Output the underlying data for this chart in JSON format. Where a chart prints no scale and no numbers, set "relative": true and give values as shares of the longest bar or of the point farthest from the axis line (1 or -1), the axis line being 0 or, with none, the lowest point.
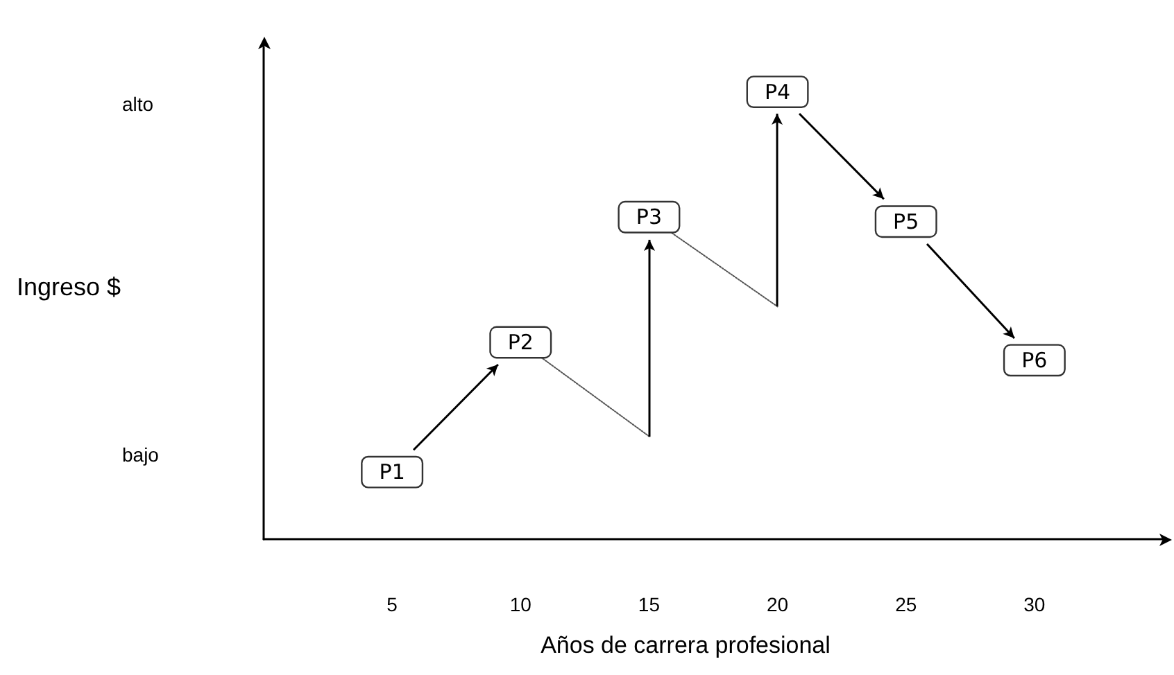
{
  "chart_data": {
    "type": "line",
    "relative": true,
    "xlabel": "Años de carrera profesional",
    "xlim": [
      0,
      35
    ],
    "xticks": [
      5,
      10,
      15,
      20,
      25,
      30
    ],
    "grid": false,
    "annotations": [
      "alto",
      "bajo",
      "Ingreso $",
      {
        "text": "P1",
        "x": 5,
        "y": 0.15
      },
      {
        "text": "P2",
        "x": 10,
        "y": 0.44
      },
      {
        "text": "P3",
        "x": 15,
        "y": 0.72
      },
      {
        "text": "P4",
        "x": 20,
        "y": 1
      },
      {
        "text": "P5",
        "x": 25,
        "y": 0.71
      },
      {
        "text": "P6",
        "x": 30,
        "y": 0.4
      }
    ],
    "series": [
      {
        "type": "scatter",
        "color": "#333333",
        "x": [
          5,
          10,
          15,
          20,
          25,
          30
        ],
        "values": [
          0.15,
          0.44,
          0.72,
          1,
          0.71,
          0.4
        ]
      },
      {
        "color": "#555555",
        "line_style": "dotted",
        "x": [
          10,
          15
        ],
        "values": [
          0.44,
          0.23
        ]
      },
      {
        "color": "#555555",
        "line_style": "dotted",
        "x": [
          15,
          20
        ],
        "values": [
          0.72,
          0.52
        ]
      }
    ]
  }
}
